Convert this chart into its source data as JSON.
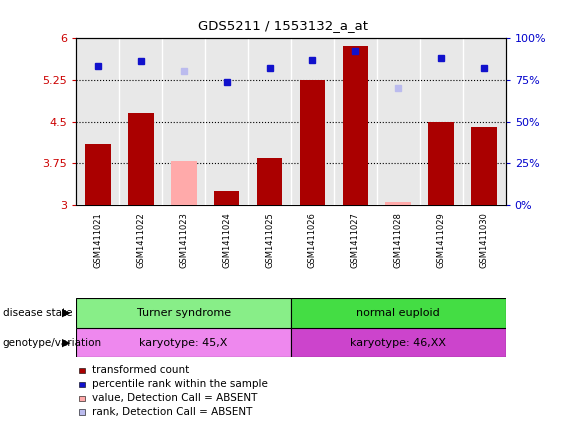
{
  "title": "GDS5211 / 1553132_a_at",
  "samples": [
    "GSM1411021",
    "GSM1411022",
    "GSM1411023",
    "GSM1411024",
    "GSM1411025",
    "GSM1411026",
    "GSM1411027",
    "GSM1411028",
    "GSM1411029",
    "GSM1411030"
  ],
  "bar_values": [
    4.1,
    4.65,
    3.8,
    3.25,
    3.85,
    5.25,
    5.85,
    3.05,
    4.5,
    4.4
  ],
  "bar_absent": [
    false,
    false,
    true,
    false,
    false,
    false,
    false,
    true,
    false,
    false
  ],
  "rank_values": [
    83,
    86,
    80,
    74,
    82,
    87,
    92,
    70,
    88,
    82
  ],
  "rank_absent": [
    false,
    false,
    true,
    false,
    false,
    false,
    false,
    true,
    false,
    false
  ],
  "ylim_left": [
    3,
    6
  ],
  "ylim_right": [
    0,
    100
  ],
  "yticks_left": [
    3,
    3.75,
    4.5,
    5.25,
    6
  ],
  "yticks_right": [
    0,
    25,
    50,
    75,
    100
  ],
  "ytick_labels_right": [
    "0%",
    "25%",
    "50%",
    "75%",
    "100%"
  ],
  "bar_color_normal": "#aa0000",
  "bar_color_absent": "#ffaaaa",
  "rank_color_normal": "#1111cc",
  "rank_color_absent": "#bbbbee",
  "group1_label": "Turner syndrome",
  "group2_label": "normal euploid",
  "genotype1_label": "karyotype: 45,X",
  "genotype2_label": "karyotype: 46,XX",
  "group1_color": "#88ee88",
  "group2_color": "#44dd44",
  "genotype1_color": "#ee88ee",
  "genotype2_color": "#cc44cc",
  "plot_bg_color": "#e8e8e8",
  "bar_width": 0.6,
  "dotted_lines": [
    3.75,
    4.5,
    5.25
  ],
  "legend_items": [
    {
      "label": "transformed count",
      "color": "#aa0000"
    },
    {
      "label": "percentile rank within the sample",
      "color": "#1111cc"
    },
    {
      "label": "value, Detection Call = ABSENT",
      "color": "#ffaaaa"
    },
    {
      "label": "rank, Detection Call = ABSENT",
      "color": "#bbbbee"
    }
  ]
}
